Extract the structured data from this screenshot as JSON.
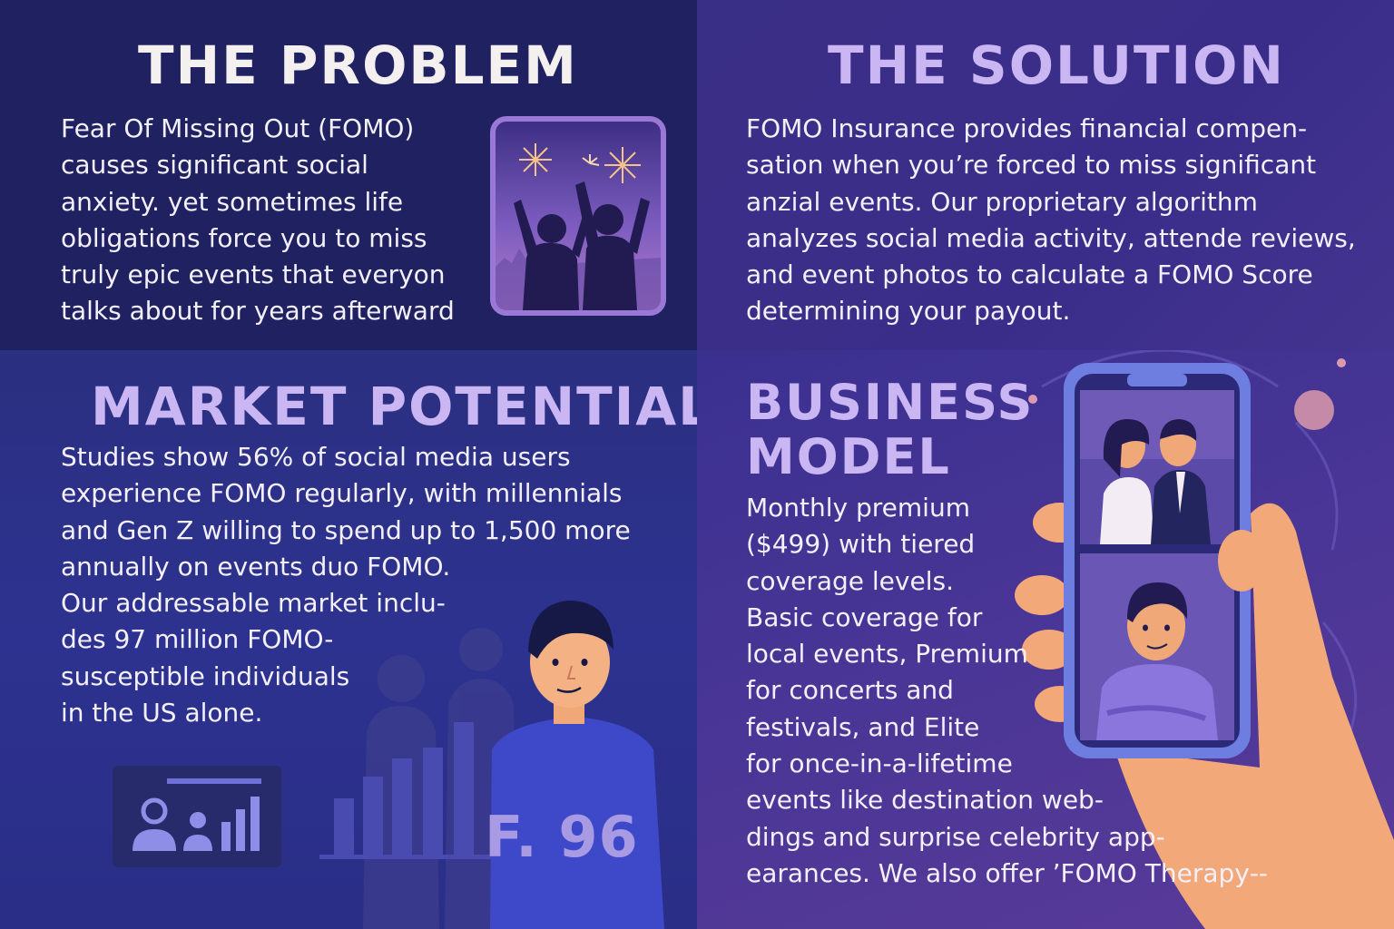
{
  "problem": {
    "title": "THE PROBLEM",
    "lines": [
      "Fear Of Missing Out (FOMO)",
      "causes significant social",
      "anxiety. yet sometimes life",
      "obligations force you to miss",
      "truly epic events that everyon",
      "talks about for years afterward"
    ]
  },
  "solution": {
    "title": "THE SOLUTION",
    "lines": [
      "FOMO Insurance provides financial compen-",
      "sation when you’re forced to miss significant",
      "anzial events. Our proprietary algorithm",
      "analyzes social media activity, attende reviews,",
      "and event photos to calculate a FOMO Score",
      "determining your payout."
    ]
  },
  "market": {
    "title": "MARKET POTENTIAL",
    "lines": [
      "Studies show 56% of social media users",
      "experience FOMO regularly, with millennials",
      "and Gen Z willing to spend up to 1,500 more",
      "annually on events duo FOMO.",
      "Our addressable market inclu-",
      "des 97 million FOMO-",
      "susceptible individuals",
      "in the US alone."
    ],
    "score_label": "F. 96"
  },
  "business": {
    "title_line1": "BUSINESS",
    "title_line2": "MODEL",
    "lines": [
      "Monthly premium",
      "($499) with tiered",
      "coverage levels.",
      "Basic coverage for",
      "local events, Premium",
      "for concerts and",
      "festivals, and Elite",
      "for once-in-a-lifetime",
      "events like destination web-",
      "dings and surprise celebrity app-",
      "earances. We also offer ’FOMO Therapy‑-"
    ]
  },
  "icons": {
    "fireworks": "fireworks-icon",
    "celebration": "celebrating-people-illustration",
    "phone": "smartphone-illustration",
    "hand": "hand-illustration",
    "dashboard": "user-chart-icon"
  },
  "colors": {
    "accent_lavender": "#c9b6f2",
    "frame_purple": "#9a78d6",
    "hand_peach": "#f2a878"
  }
}
